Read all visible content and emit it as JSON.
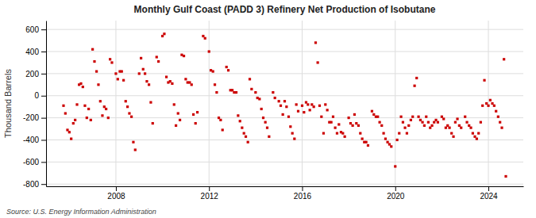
{
  "chart_data": {
    "type": "scatter",
    "title": "Monthly Gulf Coast (PADD 3) Refinery Net Production of Isobutane",
    "ylabel": "Thousand Barrels",
    "annotations": [
      "Source: U.S. Energy Information Administration"
    ],
    "color": "#cc0000",
    "marker": "square",
    "grid": true,
    "xlim": [
      2005.0,
      2025.5
    ],
    "xticks": [
      2008,
      2012,
      2016,
      2020,
      2024
    ],
    "ylim": [
      -820,
      680
    ],
    "yticks": [
      -800,
      -600,
      -400,
      -200,
      0,
      200,
      400,
      600
    ],
    "x": [
      2005.75,
      2005.83,
      2005.92,
      2006.0,
      2006.08,
      2006.17,
      2006.25,
      2006.33,
      2006.42,
      2006.5,
      2006.58,
      2006.67,
      2006.75,
      2006.83,
      2006.92,
      2007.0,
      2007.08,
      2007.17,
      2007.25,
      2007.33,
      2007.42,
      2007.5,
      2007.58,
      2007.67,
      2007.75,
      2007.83,
      2008.0,
      2008.08,
      2008.17,
      2008.25,
      2008.33,
      2008.42,
      2008.5,
      2008.58,
      2008.67,
      2008.75,
      2008.83,
      2009.0,
      2009.08,
      2009.17,
      2009.25,
      2009.33,
      2009.42,
      2009.5,
      2009.58,
      2009.75,
      2009.83,
      2010.0,
      2010.08,
      2010.17,
      2010.25,
      2010.33,
      2010.42,
      2010.5,
      2010.58,
      2010.67,
      2010.75,
      2010.83,
      2010.92,
      2011.0,
      2011.08,
      2011.17,
      2011.25,
      2011.33,
      2011.42,
      2011.5,
      2011.75,
      2011.83,
      2012.0,
      2012.08,
      2012.17,
      2012.25,
      2012.33,
      2012.42,
      2012.5,
      2012.58,
      2012.75,
      2012.83,
      2012.92,
      2013.0,
      2013.08,
      2013.17,
      2013.25,
      2013.33,
      2013.42,
      2013.5,
      2013.58,
      2013.67,
      2013.75,
      2013.83,
      2014.0,
      2014.08,
      2014.17,
      2014.25,
      2014.33,
      2014.42,
      2014.5,
      2014.58,
      2014.75,
      2014.83,
      2015.0,
      2015.08,
      2015.17,
      2015.25,
      2015.33,
      2015.42,
      2015.5,
      2015.58,
      2015.67,
      2015.75,
      2015.83,
      2016.0,
      2016.08,
      2016.17,
      2016.25,
      2016.33,
      2016.42,
      2016.5,
      2016.58,
      2016.67,
      2016.75,
      2016.83,
      2016.92,
      2017.0,
      2017.08,
      2017.17,
      2017.25,
      2017.33,
      2017.42,
      2017.5,
      2017.58,
      2017.67,
      2017.75,
      2017.83,
      2018.0,
      2018.08,
      2018.17,
      2018.25,
      2018.33,
      2018.42,
      2018.5,
      2018.58,
      2018.67,
      2018.75,
      2018.83,
      2019.0,
      2019.08,
      2019.17,
      2019.25,
      2019.33,
      2019.42,
      2019.5,
      2019.58,
      2019.67,
      2019.75,
      2019.83,
      2020.0,
      2020.08,
      2020.17,
      2020.25,
      2020.33,
      2020.42,
      2020.5,
      2020.58,
      2020.67,
      2020.75,
      2020.83,
      2020.92,
      2021.0,
      2021.08,
      2021.17,
      2021.25,
      2021.33,
      2021.42,
      2021.5,
      2021.58,
      2021.67,
      2021.75,
      2021.83,
      2022.0,
      2022.08,
      2022.17,
      2022.25,
      2022.33,
      2022.42,
      2022.5,
      2022.58,
      2022.67,
      2022.75,
      2022.83,
      2023.0,
      2023.08,
      2023.17,
      2023.25,
      2023.33,
      2023.42,
      2023.5,
      2023.58,
      2023.67,
      2023.75,
      2023.83,
      2023.92,
      2024.0,
      2024.08,
      2024.17,
      2024.25,
      2024.33,
      2024.42,
      2024.5,
      2024.58,
      2024.67,
      2024.75
    ],
    "values": [
      -90,
      -160,
      -310,
      -330,
      -390,
      -250,
      -220,
      -80,
      100,
      110,
      80,
      -90,
      -200,
      -120,
      -220,
      420,
      310,
      220,
      100,
      -50,
      -180,
      -100,
      -120,
      -200,
      330,
      300,
      200,
      150,
      220,
      220,
      140,
      -50,
      -100,
      -160,
      -190,
      -420,
      -490,
      200,
      340,
      240,
      200,
      130,
      100,
      -60,
      -250,
      350,
      310,
      540,
      560,
      170,
      120,
      130,
      110,
      -80,
      -270,
      -160,
      -220,
      370,
      360,
      150,
      120,
      120,
      100,
      -170,
      -250,
      -150,
      540,
      520,
      400,
      230,
      220,
      100,
      30,
      -200,
      -220,
      -310,
      260,
      230,
      50,
      50,
      30,
      30,
      -180,
      -230,
      -290,
      -340,
      -370,
      -420,
      150,
      60,
      30,
      -20,
      -30,
      -120,
      -200,
      -240,
      -290,
      -370,
      30,
      -20,
      -50,
      -90,
      -170,
      -50,
      -100,
      -190,
      -280,
      -340,
      -390,
      -80,
      -140,
      -90,
      -150,
      -60,
      -80,
      -130,
      -80,
      -100,
      480,
      300,
      -90,
      -190,
      -340,
      -80,
      -130,
      -240,
      -240,
      -190,
      -290,
      -340,
      -260,
      -330,
      -340,
      -370,
      -200,
      -250,
      -270,
      -170,
      -250,
      -270,
      -340,
      -390,
      -420,
      -420,
      -450,
      -140,
      -170,
      -190,
      -190,
      -240,
      -270,
      -340,
      -390,
      -420,
      -440,
      -460,
      -640,
      -400,
      -340,
      -190,
      -240,
      -290,
      -340,
      -270,
      -220,
      -190,
      90,
      160,
      -190,
      -220,
      -240,
      -270,
      -190,
      -240,
      -290,
      -270,
      -240,
      -220,
      -240,
      -190,
      -210,
      -290,
      -270,
      -290,
      -340,
      -370,
      -240,
      -210,
      -270,
      -290,
      -190,
      -240,
      -270,
      -290,
      -340,
      -370,
      -390,
      -340,
      -240,
      -90,
      140,
      -70,
      -90,
      -40,
      -70,
      -90,
      -140,
      -190,
      -240,
      -290,
      330,
      -730
    ]
  }
}
